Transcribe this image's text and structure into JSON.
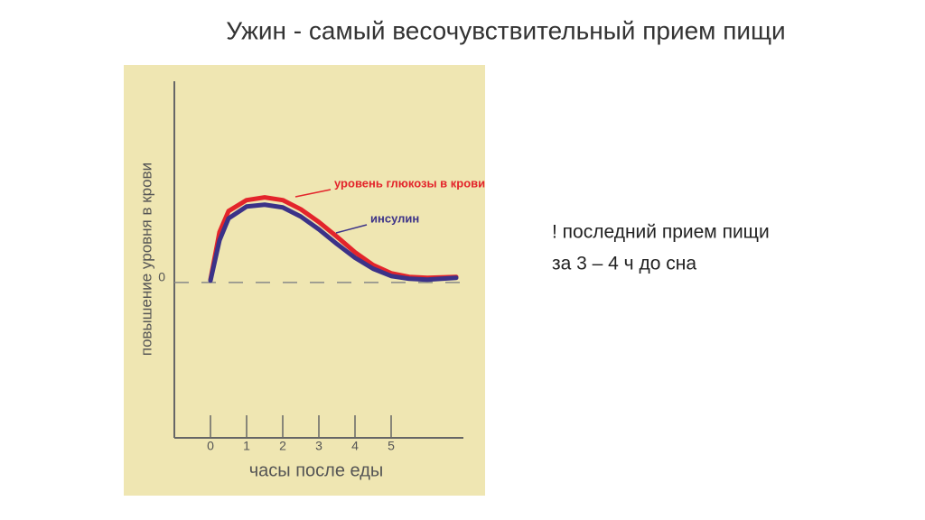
{
  "slide": {
    "title": "Ужин - самый весочувствительный прием пищи",
    "note": [
      "! последний прием пищи",
      "за 3 – 4 ч до сна"
    ]
  },
  "chart_data": {
    "type": "line",
    "x_label": "часы после еды",
    "y_label": "повышение уровня в крови",
    "x": [
      0,
      0.25,
      0.5,
      1,
      1.5,
      2,
      2.5,
      3,
      3.5,
      4,
      4.5,
      5,
      5.5,
      6,
      6.8
    ],
    "series": [
      {
        "name": "уровень глюкозы в крови",
        "color": "#e3242b",
        "values": [
          0.3,
          5.5,
          7.8,
          9.0,
          9.3,
          9.0,
          8.0,
          6.6,
          5.0,
          3.3,
          1.9,
          1.0,
          0.6,
          0.5,
          0.6
        ]
      },
      {
        "name": "инсулин",
        "color": "#3b3288",
        "values": [
          0.2,
          4.6,
          7.0,
          8.3,
          8.5,
          8.2,
          7.2,
          5.8,
          4.2,
          2.7,
          1.5,
          0.7,
          0.4,
          0.3,
          0.5
        ]
      }
    ],
    "xlim": [
      -1,
      7
    ],
    "xticks": [
      0,
      1,
      2,
      3,
      4,
      5
    ],
    "ylim": [
      -17,
      22
    ],
    "yticks": [
      0
    ]
  }
}
